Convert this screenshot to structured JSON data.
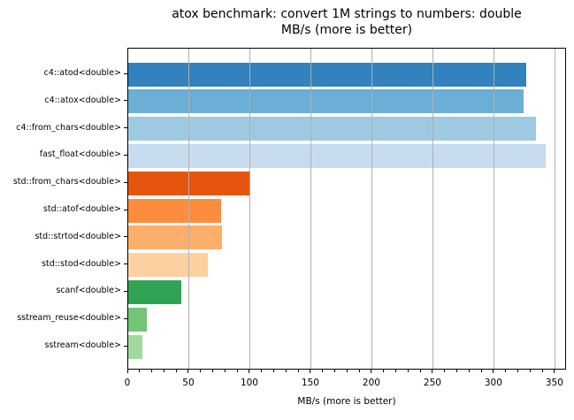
{
  "chart_data": {
    "type": "bar",
    "orientation": "horizontal",
    "title": "atox benchmark: convert 1M strings to numbers: double",
    "subtitle": "MB/s (more is better)",
    "xlabel": "MB/s (more is better)",
    "ylabel": "",
    "unit": "MB/s",
    "categories": [
      "c4::atod<double>",
      "c4::atox<double>",
      "c4::from_chars<double>",
      "fast_float<double>",
      "std::from_chars<double>",
      "std::atof<double>",
      "std::strtod<double>",
      "std::stod<double>",
      "scanf<double>",
      "sstream_reuse<double>",
      "sstream<double>"
    ],
    "values": [
      326,
      324,
      334,
      342,
      99,
      76,
      77,
      65,
      43.5,
      15,
      11.5
    ],
    "bar_colors": [
      "#3182bd",
      "#6baed6",
      "#9ecae1",
      "#c6dbef",
      "#e6550d",
      "#fd8d3c",
      "#fdae6b",
      "#fdd0a2",
      "#31a354",
      "#74c476",
      "#a1d99b"
    ],
    "xlim": [
      0,
      359.5
    ],
    "xticks": [
      0,
      50,
      100,
      150,
      200,
      250,
      300,
      350
    ],
    "minor_tick_step": 10,
    "grid": {
      "axis": "x",
      "on": true,
      "color": "#b0b0b0",
      "above_bars": true
    },
    "legend": null,
    "colors": {
      "spine": "#000000",
      "background": "#ffffff",
      "text": "#000000"
    }
  }
}
